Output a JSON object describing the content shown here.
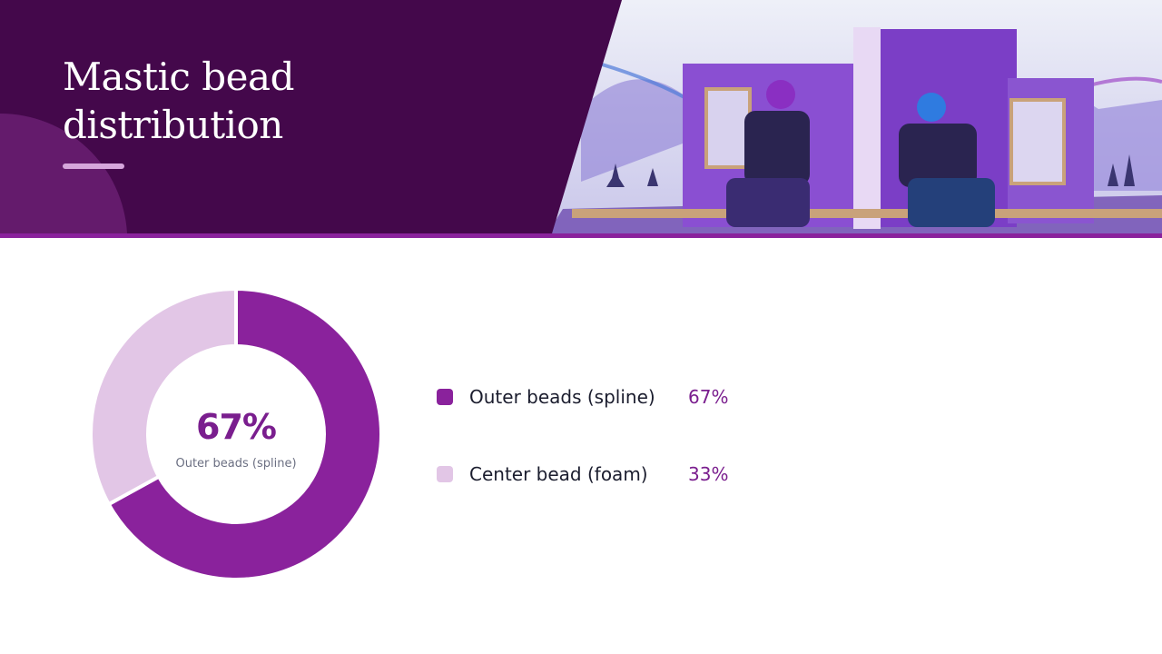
{
  "header": {
    "title_line1": "Mastic bead",
    "title_line2": "distribution",
    "background_color": "#4a0a50",
    "accent_color": "#8a229c",
    "rule_color": "#d6a6dc"
  },
  "illustration": {
    "subject": "two-workers-applying-mastic-to-sip-panels",
    "icon": "photo-illustration"
  },
  "chart_data": {
    "type": "pie",
    "categories": [
      "Outer beads (spline)",
      "Center bead (foam)"
    ],
    "values": [
      67,
      33
    ],
    "colors": [
      "#8a229c",
      "#e2c6e6"
    ],
    "center_value": "67%",
    "center_label": "Outer beads (spline)",
    "legend_values": [
      "67%",
      "33%"
    ],
    "legend_position": "right"
  }
}
